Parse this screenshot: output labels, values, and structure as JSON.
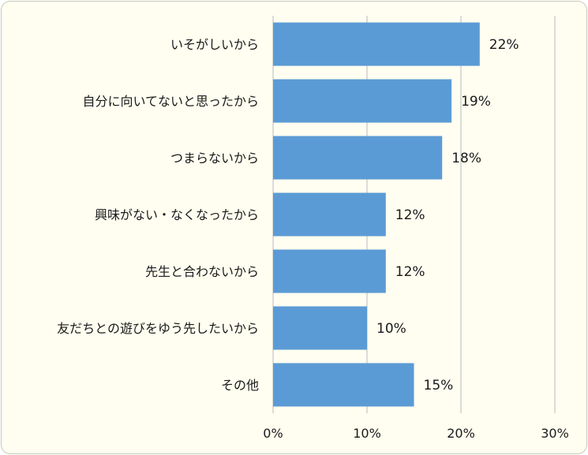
{
  "chart_data": {
    "type": "bar",
    "orientation": "horizontal",
    "categories": [
      "いそがしいから",
      "自分に向いてないと思ったから",
      "つまらないから",
      "興味がない・なくなったから",
      "先生と合わないから",
      "友だちとの遊びをゆう先したいから",
      "その他"
    ],
    "values": [
      22,
      19,
      18,
      12,
      12,
      10,
      15
    ],
    "data_labels": [
      "22%",
      "19%",
      "18%",
      "12%",
      "12%",
      "10%",
      "15%"
    ],
    "xlim": [
      0,
      30
    ],
    "x_ticks": [
      0,
      10,
      20,
      30
    ],
    "x_tick_labels": [
      "0%",
      "10%",
      "20%",
      "30%"
    ],
    "grid": "vertical",
    "legend": "none",
    "colors": {
      "bar": "#5b9bd5",
      "grid": "#d0d0d0",
      "background": "#fffef0"
    }
  }
}
